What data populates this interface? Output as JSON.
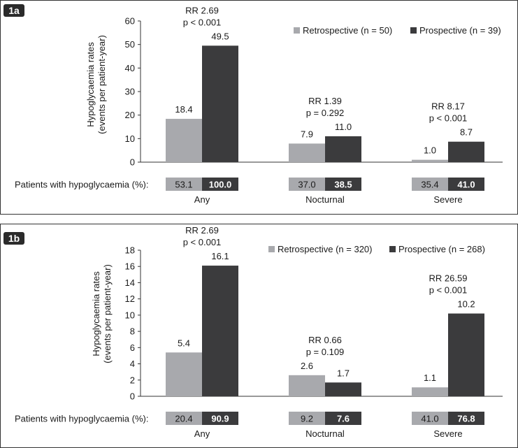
{
  "colors": {
    "retro": "#a8a9ad",
    "prosp": "#3b3b3d",
    "axis": "#333333",
    "text": "#1a1a1a"
  },
  "chart_data": [
    {
      "panel_label": "1a",
      "type": "bar",
      "categories": [
        "Any",
        "Nocturnal",
        "Severe"
      ],
      "series": [
        {
          "name": "Retrospective (n = 50)",
          "values": [
            18.4,
            7.9,
            1.0
          ]
        },
        {
          "name": "Prospective (n = 39)",
          "values": [
            49.5,
            11.0,
            8.7
          ]
        }
      ],
      "value_labels": [
        [
          "18.4",
          "7.9",
          "1.0"
        ],
        [
          "49.5",
          "11.0",
          "8.7"
        ]
      ],
      "annotations": [
        {
          "rr": "RR 2.69",
          "p": "p < 0.001"
        },
        {
          "rr": "RR 1.39",
          "p": "p = 0.292"
        },
        {
          "rr": "RR 8.17",
          "p": "p < 0.001"
        }
      ],
      "ylabel_line1": "Hypoglycaemia rates",
      "ylabel_line2": "(events per patient-year)",
      "ylim": [
        0,
        60
      ],
      "yticks": [
        0,
        10,
        20,
        30,
        40,
        50,
        60
      ],
      "legend_position": "top-right",
      "table": {
        "label": "Patients with hypoglycaemia (%):",
        "retro": [
          "53.1",
          "37.0",
          "35.4"
        ],
        "prosp": [
          "100.0",
          "38.5",
          "41.0"
        ]
      }
    },
    {
      "panel_label": "1b",
      "type": "bar",
      "categories": [
        "Any",
        "Nocturnal",
        "Severe"
      ],
      "series": [
        {
          "name": "Retrospective (n = 320)",
          "values": [
            5.4,
            2.6,
            1.1
          ]
        },
        {
          "name": "Prospective (n = 268)",
          "values": [
            16.1,
            1.7,
            10.2
          ]
        }
      ],
      "value_labels": [
        [
          "5.4",
          "2.6",
          "1.1"
        ],
        [
          "16.1",
          "1.7",
          "10.2"
        ]
      ],
      "annotations": [
        {
          "rr": "RR 2.69",
          "p": "p < 0.001"
        },
        {
          "rr": "RR 0.66",
          "p": "p = 0.109"
        },
        {
          "rr": "RR 26.59",
          "p": "p < 0.001"
        }
      ],
      "ylabel_line1": "Hypoglycaemia rates",
      "ylabel_line2": "(events per patient-year)",
      "ylim": [
        0,
        18
      ],
      "yticks": [
        0,
        2,
        4,
        6,
        8,
        10,
        12,
        14,
        16,
        18
      ],
      "legend_position": "top-right",
      "table": {
        "label": "Patients with hypoglycaemia (%):",
        "retro": [
          "20.4",
          "9.2",
          "41.0"
        ],
        "prosp": [
          "90.9",
          "7.6",
          "76.8"
        ]
      }
    }
  ]
}
